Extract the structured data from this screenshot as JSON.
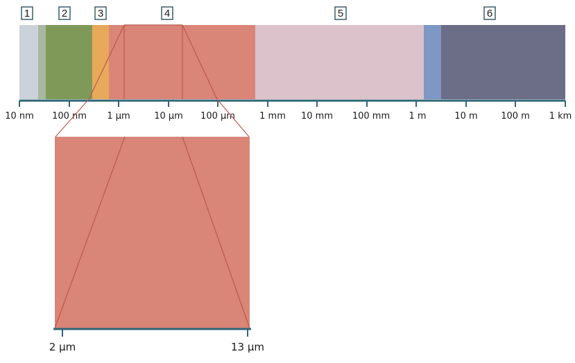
{
  "regions": [
    {
      "id": "1",
      "label": "1"
    },
    {
      "id": "2",
      "label": "2"
    },
    {
      "id": "3",
      "label": "3"
    },
    {
      "id": "4",
      "label": "4"
    },
    {
      "id": "5",
      "label": "5"
    },
    {
      "id": "6",
      "label": "6"
    }
  ],
  "scale_ticks": [
    "10 nm",
    "100 nm",
    "1 µm",
    "10 µm",
    "100 µm",
    "1 mm",
    "10 mm",
    "100 mm",
    "1 m",
    "10 m",
    "100 m",
    "1 km"
  ],
  "zoom": {
    "start_label": "2 µm",
    "end_label": "13 µm"
  },
  "colors": {
    "axis": "#2f6578",
    "band_1a": "#ccd2d9",
    "band_1b": "#a9b8a1",
    "band_2": "#7f9a58",
    "band_3": "#e8a95b",
    "band_4": "#d98577",
    "band_5": "#dcc2cb",
    "band_6a": "#7f97c4",
    "band_6b": "#6b6e86",
    "zoom_fill": "#d98577",
    "zoom_lines": "#b95a4c"
  }
}
